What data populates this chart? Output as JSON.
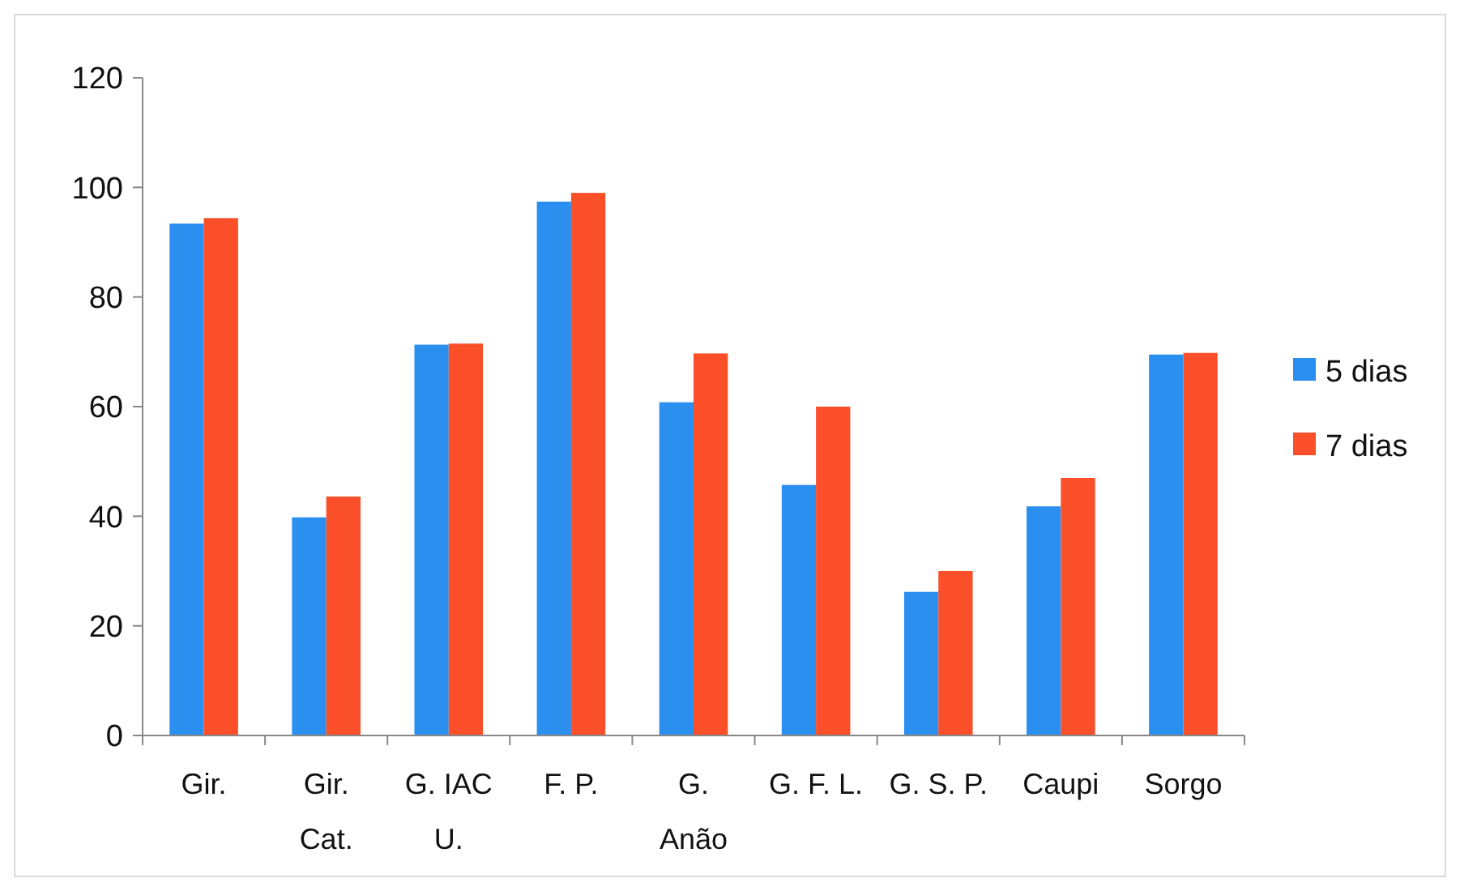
{
  "chart_data": {
    "type": "bar",
    "categories": [
      "Gir.",
      "Gir.\nCat.",
      "G. IAC\nU.",
      "F. P.",
      "G.\nAnão",
      "G. F. L.",
      "G. S. P.",
      "Caupi",
      "Sorgo"
    ],
    "series": [
      {
        "name": "5 dias",
        "color": "#2b8ff0",
        "values": [
          93.4,
          39.8,
          71.3,
          97.4,
          60.8,
          45.7,
          26.2,
          41.8,
          69.5
        ]
      },
      {
        "name": "7 dias",
        "color": "#fb4f2a",
        "values": [
          94.4,
          43.6,
          71.5,
          99,
          69.7,
          60,
          30,
          47,
          69.8
        ]
      }
    ],
    "ylim": [
      0,
      120
    ],
    "yticks": [
      0,
      20,
      40,
      60,
      80,
      100,
      120
    ],
    "grid": false,
    "legend": "right"
  }
}
